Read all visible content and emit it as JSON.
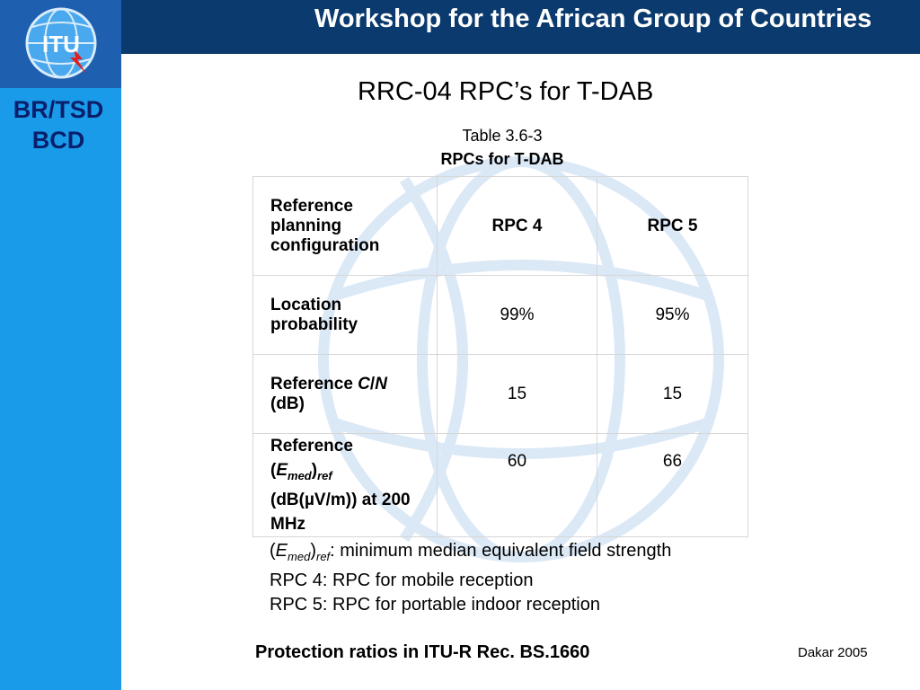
{
  "header": {
    "title": "Workshop for the African Group of Countries"
  },
  "sidebar": {
    "line1": "BR/TSD",
    "line2": "BCD",
    "logo_text": "ITU"
  },
  "slide": {
    "title": "RRC-04 RPC’s for T-DAB"
  },
  "table": {
    "caption_number": "Table 3.6-3",
    "caption_title": "RPCs for T-DAB",
    "header": {
      "label": "Reference planning configuration",
      "col1": "RPC 4",
      "col2": "RPC 5"
    },
    "rows": [
      {
        "label": "Location probability",
        "col1": "99%",
        "col2": "95%"
      },
      {
        "label_prefix": "Reference ",
        "label_c": "C",
        "label_slash": "/",
        "label_n": "N",
        "label_suffix": "(dB)",
        "col1": "15",
        "col2": "15"
      },
      {
        "label_prefix": "Reference",
        "label_e": "E",
        "label_med": "med",
        "label_ref": "ref",
        "label_suffix": "(dB(µV/m)) at 200 MHz",
        "col1": "60",
        "col2": "66"
      }
    ]
  },
  "notes": {
    "line1_suffix": ": minimum median equivalent field strength",
    "line2": "RPC 4: RPC for mobile reception",
    "line3": "RPC 5: RPC for portable indoor reception"
  },
  "footer": {
    "left": "Protection ratios in ITU-R Rec. BS.1660",
    "right": "Dakar 2005"
  }
}
